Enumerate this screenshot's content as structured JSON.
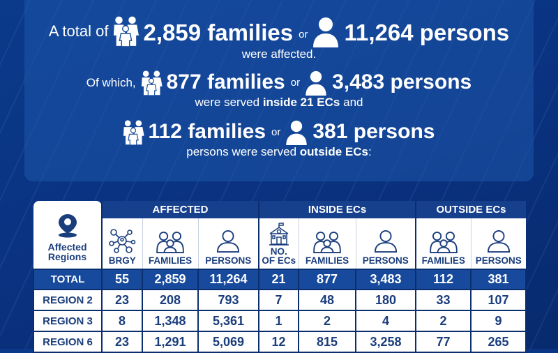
{
  "summary": {
    "line1": {
      "prefix": "A total of",
      "families": "2,859 families",
      "or": "or",
      "persons": "11,264 persons"
    },
    "line2": "were affected.",
    "line3": {
      "prefix": "Of which,",
      "families": "877 families",
      "or": "or",
      "persons": "3,483 persons"
    },
    "line4": {
      "pre": "were served ",
      "bold": "inside 21 ECs",
      "post": " and"
    },
    "line5": {
      "families": "112 families",
      "or": "or",
      "persons": "381 persons"
    },
    "line6": {
      "pre": "persons were served ",
      "bold": "outside ECs",
      "post": ":"
    }
  },
  "table": {
    "corner_label_1": "Affected",
    "corner_label_2": "Regions",
    "groups": [
      "AFFECTED",
      "INSIDE ECs",
      "OUTSIDE ECs"
    ],
    "columns": [
      "BRGY",
      "FAMILIES",
      "PERSONS",
      "NO.",
      "OF ECs",
      "FAMILIES",
      "PERSONS",
      "FAMILIES",
      "PERSONS"
    ],
    "rows": [
      {
        "name": "TOTAL",
        "values": [
          "55",
          "2,859",
          "11,264",
          "21",
          "877",
          "3,483",
          "112",
          "381"
        ]
      },
      {
        "name": "REGION 2",
        "values": [
          "23",
          "208",
          "793",
          "7",
          "48",
          "180",
          "33",
          "107"
        ]
      },
      {
        "name": "REGION 3",
        "values": [
          "8",
          "1,348",
          "5,361",
          "1",
          "2",
          "4",
          "2",
          "9"
        ]
      },
      {
        "name": "REGION 6",
        "values": [
          "23",
          "1,291",
          "5,069",
          "12",
          "815",
          "3,258",
          "77",
          "265"
        ]
      }
    ]
  },
  "colors": {
    "navy": "#163f8c",
    "dark": "#0b2e6e",
    "text": "#1a3d7c",
    "white": "#ffffff"
  },
  "icons": [
    "family-icon",
    "person-icon",
    "location-pin-icon",
    "network-icon",
    "school-icon"
  ]
}
